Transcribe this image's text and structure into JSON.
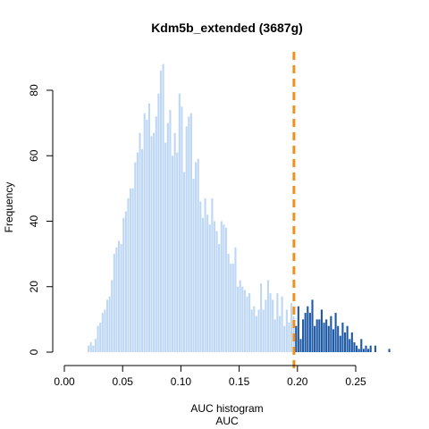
{
  "chart_data": {
    "type": "bar",
    "title": "Kdm5b_extended (3687g)",
    "xlabel": "AUC histogram",
    "xlabel2": "AUC",
    "ylabel": "Frequency",
    "xlim": [
      0.0,
      0.28
    ],
    "ylim": [
      0,
      80
    ],
    "xticks": [
      "0.00",
      "0.05",
      "0.10",
      "0.15",
      "0.20",
      "0.25"
    ],
    "yticks": [
      "0",
      "20",
      "40",
      "60",
      "80"
    ],
    "bin_width": 0.002,
    "bin_start": 0.02,
    "threshold": 0.197,
    "colors": {
      "below_threshold": "#bdd7f5",
      "above_threshold": "#1f5aa6",
      "threshold_line": "#f28e1b"
    },
    "series": [
      {
        "values": [
          2,
          3,
          2,
          4,
          8,
          9,
          12,
          13,
          16,
          17,
          22,
          30,
          32,
          34,
          33,
          41,
          43,
          47,
          50,
          50,
          58,
          61,
          67,
          62,
          73,
          71,
          76,
          66,
          67,
          72,
          79,
          86,
          88,
          64,
          70,
          74,
          60,
          67,
          61,
          79,
          75,
          55,
          69,
          72,
          73,
          53,
          58,
          59,
          46,
          41,
          47,
          42,
          39,
          47,
          40,
          37,
          33,
          40,
          39,
          38,
          30,
          27,
          27,
          32,
          20,
          22,
          20,
          19,
          17,
          18,
          13,
          14,
          11,
          13,
          21,
          13,
          16,
          22,
          18,
          16,
          10,
          18,
          11,
          17,
          8,
          13,
          9,
          15,
          11,
          8,
          14,
          4,
          10,
          12,
          14,
          12,
          16,
          8,
          10,
          10,
          13,
          9,
          10,
          8,
          11,
          7,
          12,
          8,
          5,
          9,
          6,
          8,
          4,
          6,
          3,
          2,
          1,
          4,
          1,
          2,
          1,
          2,
          0,
          2,
          0,
          0,
          0,
          0,
          0,
          1,
          0
        ]
      }
    ]
  }
}
